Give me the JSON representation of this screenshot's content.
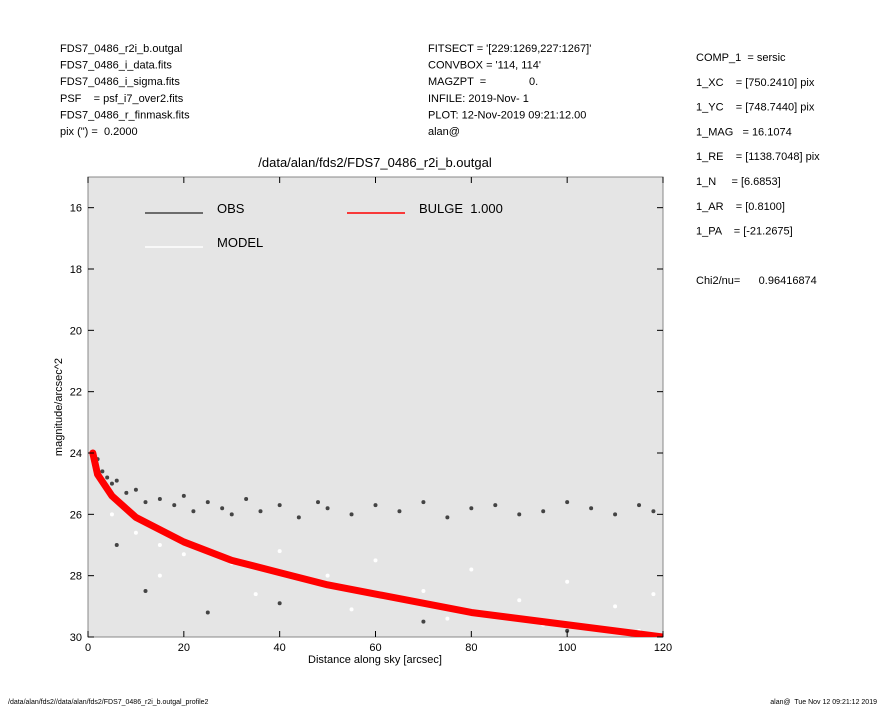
{
  "header": {
    "left": [
      "FDS7_0486_r2i_b.outgal",
      "FDS7_0486_i_data.fits",
      "FDS7_0486_i_sigma.fits",
      "PSF    = psf_i7_over2.fits",
      "FDS7_0486_r_finmask.fits",
      "pix (\") =  0.2000"
    ],
    "middle": [
      "FITSECT = '[229:1269,227:1267]'",
      "CONVBOX = '114, 114'",
      "MAGZPT  =              0.",
      "INFILE: 2019-Nov- 1",
      "PLOT: 12-Nov-2019 09:21:12.00",
      "alan@"
    ]
  },
  "params": [
    "COMP_1  = sersic",
    "1_XC    = [750.2410] pix",
    "1_YC    = [748.7440] pix",
    "1_MAG   = 16.1074",
    "1_RE    = [1138.7048] pix",
    "1_N     = [6.6853]",
    "1_AR    = [0.8100]",
    "1_PA    = [-21.2675]",
    "",
    "Chi2/nu=      0.96416874"
  ],
  "footer": {
    "left": "/data/alan/fds2//data/alan/fds2/FDS7_0486_r2i_b.outgal_profile2",
    "right": "alan@  Tue Nov 12 09:21:12 2019"
  },
  "chart_data": {
    "type": "scatter",
    "title": "/data/alan/fds2/FDS7_0486_r2i_b.outgal",
    "xlabel": "Distance along sky [arcsec]",
    "ylabel": "magnitude/arcsec^2",
    "xlim": [
      0,
      120
    ],
    "xticks": [
      0,
      20,
      40,
      60,
      80,
      100,
      120
    ],
    "ylim": [
      30,
      15
    ],
    "yticks": [
      16,
      18,
      20,
      22,
      24,
      26,
      28,
      30
    ],
    "background": "#e5e5e5",
    "series": [
      {
        "name": "OBS",
        "color": "#444444",
        "mark": "point",
        "x": [
          2,
          3,
          4,
          5,
          6,
          8,
          10,
          12,
          15,
          18,
          20,
          22,
          25,
          28,
          30,
          33,
          36,
          40,
          44,
          48,
          50,
          55,
          60,
          65,
          70,
          75,
          80,
          85,
          90,
          95,
          100,
          105,
          110,
          115,
          118,
          6,
          12,
          25,
          40,
          70,
          100
        ],
        "values": [
          24.2,
          24.6,
          24.8,
          25.0,
          24.9,
          25.3,
          25.2,
          25.6,
          25.5,
          25.7,
          25.4,
          25.9,
          25.6,
          25.8,
          26.0,
          25.5,
          25.9,
          25.7,
          26.1,
          25.6,
          25.8,
          26.0,
          25.7,
          25.9,
          25.6,
          26.1,
          25.8,
          25.7,
          26.0,
          25.9,
          25.6,
          25.8,
          26.0,
          25.7,
          25.9,
          27.0,
          28.5,
          29.2,
          28.9,
          29.5,
          29.8
        ]
      },
      {
        "name": "MODEL",
        "color": "#ffffff",
        "mark": "point",
        "x": [
          5,
          10,
          15,
          20,
          30,
          40,
          50,
          60,
          70,
          80,
          90,
          100,
          110,
          118,
          15,
          35,
          55,
          75,
          95,
          115
        ],
        "values": [
          26.0,
          26.6,
          27.0,
          27.3,
          27.6,
          27.2,
          28.0,
          27.5,
          28.5,
          27.8,
          28.8,
          28.2,
          29.0,
          28.6,
          28.0,
          28.6,
          29.1,
          29.4,
          29.6,
          29.8
        ]
      },
      {
        "name": "BULGE  1.000",
        "color": "#ff0000",
        "mark": "line",
        "x": [
          1,
          2,
          5,
          10,
          20,
          30,
          40,
          50,
          60,
          80,
          100,
          120
        ],
        "values": [
          24.0,
          24.7,
          25.4,
          26.1,
          26.9,
          27.5,
          27.9,
          28.3,
          28.6,
          29.2,
          29.6,
          30.0
        ]
      }
    ]
  }
}
